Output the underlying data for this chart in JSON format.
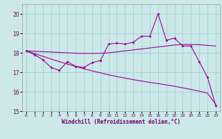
{
  "x_data": [
    0,
    1,
    2,
    3,
    4,
    5,
    6,
    7,
    8,
    9,
    10,
    11,
    12,
    13,
    14,
    15,
    16,
    17,
    18,
    19,
    20,
    21,
    22,
    23
  ],
  "y_data_main": [
    18.1,
    17.9,
    17.65,
    17.25,
    17.1,
    17.55,
    17.3,
    17.25,
    17.5,
    17.6,
    18.45,
    18.5,
    18.45,
    18.55,
    18.85,
    18.85,
    20.0,
    18.65,
    18.75,
    18.35,
    18.35,
    17.55,
    16.75,
    15.3
  ],
  "y_line_upper": [
    18.1,
    18.08,
    18.06,
    18.04,
    18.02,
    18.0,
    17.98,
    17.97,
    17.97,
    17.98,
    18.0,
    18.05,
    18.1,
    18.15,
    18.2,
    18.25,
    18.3,
    18.35,
    18.4,
    18.43,
    18.43,
    18.42,
    18.38,
    18.35
  ],
  "y_line_lower": [
    18.1,
    17.96,
    17.82,
    17.68,
    17.55,
    17.42,
    17.3,
    17.18,
    17.07,
    16.97,
    16.87,
    16.78,
    16.7,
    16.62,
    16.55,
    16.48,
    16.42,
    16.35,
    16.28,
    16.2,
    16.12,
    16.03,
    15.93,
    15.35
  ],
  "color": "#990099",
  "bg_color": "#cce8e8",
  "grid_color": "#99cccc",
  "xlabel": "Windchill (Refroidissement éolien,°C)",
  "ylim": [
    15,
    20.5
  ],
  "xlim": [
    -0.5,
    23.5
  ],
  "yticks": [
    15,
    16,
    17,
    18,
    19,
    20
  ],
  "xticks": [
    0,
    1,
    2,
    3,
    4,
    5,
    6,
    7,
    8,
    9,
    10,
    11,
    12,
    13,
    14,
    15,
    16,
    17,
    18,
    19,
    20,
    21,
    22,
    23
  ]
}
